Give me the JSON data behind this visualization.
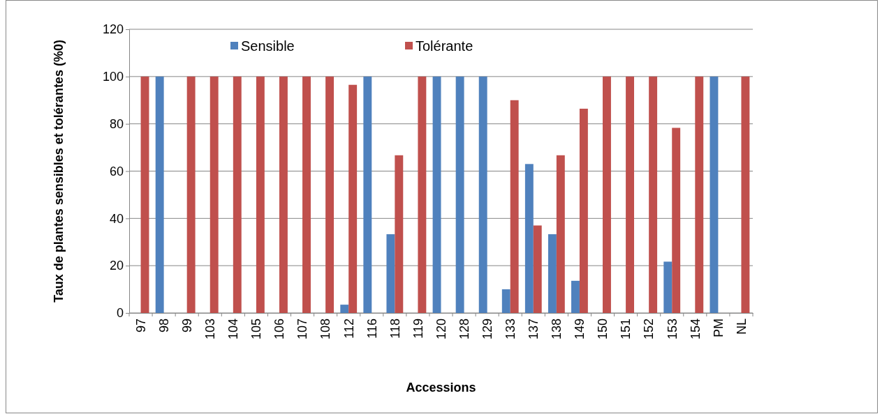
{
  "chart_data": {
    "type": "bar",
    "xlabel": "Accessions",
    "ylabel": "Taux de plantes sensibles et tolérantes (%0)",
    "categories": [
      "97",
      "98",
      "99",
      "103",
      "104",
      "105",
      "106",
      "107",
      "108",
      "112",
      "116",
      "118",
      "119",
      "120",
      "128",
      "129",
      "133",
      "137",
      "138",
      "149",
      "150",
      "151",
      "152",
      "153",
      "154",
      "PM",
      "NL"
    ],
    "series": [
      {
        "name": "Sensible",
        "color": "#4f81bd",
        "values": [
          0,
          100,
          0,
          0,
          0,
          0,
          0,
          0,
          0,
          3.5,
          100,
          33.3,
          0,
          100,
          100,
          100,
          10,
          63,
          33.3,
          13.6,
          0,
          0,
          0,
          21.7,
          0,
          100,
          0
        ]
      },
      {
        "name": "Tolérante",
        "color": "#c0504d",
        "values": [
          100,
          0,
          100,
          100,
          100,
          100,
          100,
          100,
          100,
          96.5,
          0,
          66.7,
          100,
          0,
          0,
          0,
          90,
          37,
          66.7,
          86.4,
          100,
          100,
          100,
          78.3,
          100,
          0,
          100
        ]
      }
    ],
    "ylim": [
      0,
      120
    ],
    "yticks": [
      0,
      20,
      40,
      60,
      80,
      100,
      120
    ],
    "grid": "y",
    "legend": "top"
  }
}
